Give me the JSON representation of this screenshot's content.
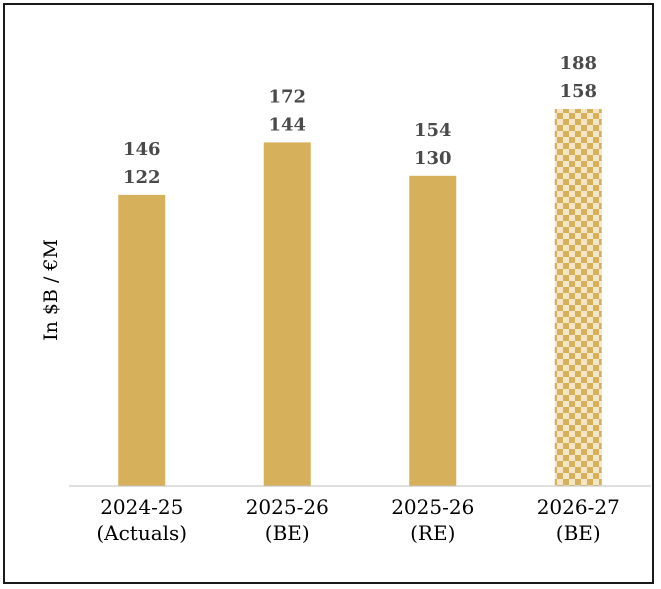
{
  "chart_data": {
    "type": "bar",
    "title": "",
    "xlabel": "",
    "ylabel": "In $B / €M",
    "categories": [
      [
        "2024-25",
        "(Actuals)"
      ],
      [
        "2025-26",
        "(BE)"
      ],
      [
        "2025-26",
        "(RE)"
      ],
      [
        "2026-27",
        "(BE)"
      ]
    ],
    "values": [
      122,
      144,
      130,
      158
    ],
    "label_pairs": [
      [
        "146",
        "122"
      ],
      [
        "172",
        "144"
      ],
      [
        "154",
        "130"
      ],
      [
        "188",
        "158"
      ]
    ],
    "ylim": [
      0,
      158
    ],
    "grid": false,
    "legend": "none",
    "bar_color": "#d6b05a",
    "pattern_colors": [
      "#d6b05a",
      "#f2e6c6"
    ],
    "patterned_bars": [
      3
    ]
  }
}
